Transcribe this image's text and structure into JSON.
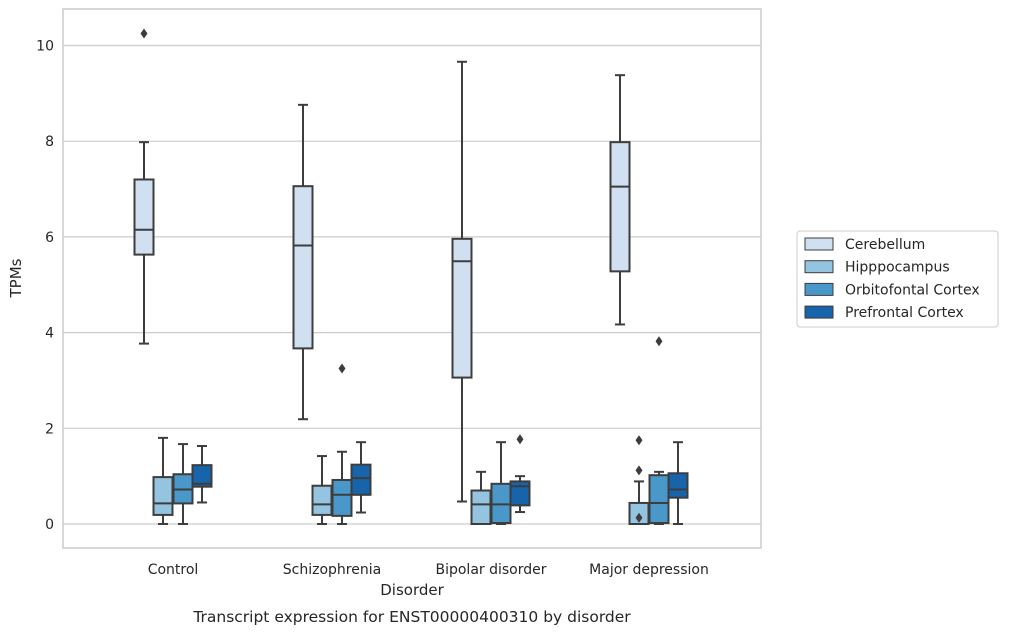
{
  "colors": {
    "Cerebellum": "#d0e0f0",
    "Hipppocampus": "#94c4df",
    "Orbitofontal Cortex": "#4a98c9",
    "Prefrontal Cortex": "#1764ab",
    "grid": "#cccccc",
    "box_line": "#3d3d3d"
  },
  "chart_data": {
    "type": "boxplot",
    "title": "",
    "caption": "Transcript expression for ENST00000400310 by disorder",
    "xlabel": "Disorder",
    "ylabel": "TPMs",
    "ylim": [
      -0.5,
      10.75
    ],
    "yticks": [
      0,
      2,
      4,
      6,
      8,
      10
    ],
    "ytick_labels": [
      "0",
      "2",
      "4",
      "6",
      "8",
      "10"
    ],
    "grid": true,
    "legend_position": "right",
    "categories": [
      "Control",
      "Schizophrenia",
      "Bipolar disorder",
      "Major depression"
    ],
    "series": [
      {
        "name": "Cerebellum",
        "boxes": [
          {
            "whislo": 3.77,
            "q1": 5.63,
            "med": 6.15,
            "q3": 7.2,
            "whishi": 7.98,
            "fliers": [
              10.25
            ]
          },
          {
            "whislo": 2.19,
            "q1": 3.67,
            "med": 5.82,
            "q3": 7.06,
            "whishi": 8.76,
            "fliers": []
          },
          {
            "whislo": 0.47,
            "q1": 3.06,
            "med": 5.49,
            "q3": 5.96,
            "whishi": 9.66,
            "fliers": []
          },
          {
            "whislo": 4.17,
            "q1": 5.28,
            "med": 7.05,
            "q3": 7.98,
            "whishi": 9.38,
            "fliers": []
          }
        ]
      },
      {
        "name": "Hipppocampus",
        "boxes": [
          {
            "whislo": 0.0,
            "q1": 0.19,
            "med": 0.43,
            "q3": 0.98,
            "whishi": 1.8,
            "fliers": []
          },
          {
            "whislo": 0.0,
            "q1": 0.19,
            "med": 0.41,
            "q3": 0.8,
            "whishi": 1.42,
            "fliers": []
          },
          {
            "whislo": 0.0,
            "q1": 0.0,
            "med": 0.41,
            "q3": 0.7,
            "whishi": 1.09,
            "fliers": []
          },
          {
            "whislo": 0.0,
            "q1": 0.0,
            "med": 0.0,
            "q3": 0.44,
            "whishi": 0.89,
            "fliers": [
              0.13,
              1.12,
              1.75
            ]
          }
        ]
      },
      {
        "name": "Orbitofontal Cortex",
        "boxes": [
          {
            "whislo": 0.0,
            "q1": 0.43,
            "med": 0.72,
            "q3": 1.04,
            "whishi": 1.67,
            "fliers": []
          },
          {
            "whislo": 0.0,
            "q1": 0.17,
            "med": 0.61,
            "q3": 0.92,
            "whishi": 1.51,
            "fliers": [
              3.25
            ]
          },
          {
            "whislo": 0.0,
            "q1": 0.02,
            "med": 0.41,
            "q3": 0.84,
            "whishi": 1.71,
            "fliers": []
          },
          {
            "whislo": 0.0,
            "q1": 0.02,
            "med": 0.44,
            "q3": 1.02,
            "whishi": 1.09,
            "fliers": [
              3.82
            ]
          }
        ]
      },
      {
        "name": "Prefrontal Cortex",
        "boxes": [
          {
            "whislo": 0.45,
            "q1": 0.78,
            "med": 0.84,
            "q3": 1.23,
            "whishi": 1.63,
            "fliers": []
          },
          {
            "whislo": 0.24,
            "q1": 0.61,
            "med": 0.96,
            "q3": 1.24,
            "whishi": 1.71,
            "fliers": []
          },
          {
            "whislo": 0.25,
            "q1": 0.39,
            "med": 0.79,
            "q3": 0.89,
            "whishi": 1.0,
            "fliers": [
              1.77
            ]
          },
          {
            "whislo": 0.0,
            "q1": 0.55,
            "med": 0.72,
            "q3": 1.06,
            "whishi": 1.71,
            "fliers": []
          }
        ]
      }
    ]
  }
}
